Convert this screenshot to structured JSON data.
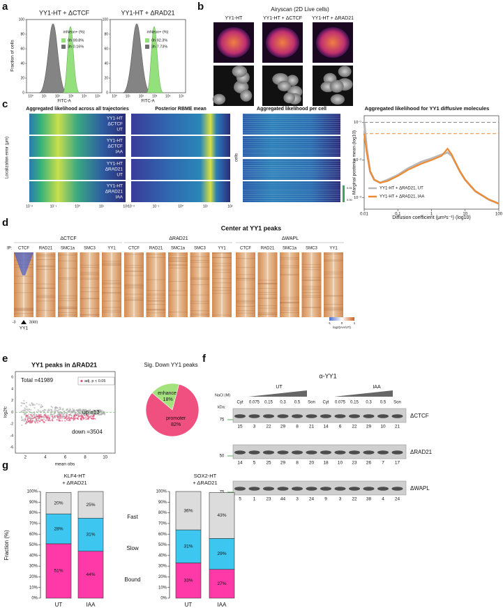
{
  "panel_labels": [
    "a",
    "b",
    "c",
    "d",
    "e",
    "f",
    "g"
  ],
  "a": {
    "titles": [
      "YY1-HT + ΔCTCF",
      "YY1-HT + ΔRAD21"
    ],
    "ylabel": "Fraction of cells",
    "xlabel": "FITC-A",
    "legend_title": "mNeon+ (%)",
    "legends": [
      [
        "0h  99.8%",
        "3h  0.16%"
      ],
      [
        "0h  92.3%",
        "3h  7.73%"
      ]
    ],
    "yticks": [
      "0",
      "20",
      "40",
      "60",
      "80",
      "100"
    ],
    "xticks": [
      "10⁰",
      "10¹",
      "10²",
      "10³",
      "10⁴",
      "10⁵"
    ]
  },
  "b": {
    "title": "Airyscan (2D Live cells)",
    "columns": [
      "YY1-HT",
      "YY1-HT + ΔCTCF",
      "YY1-HT + ΔRAD21"
    ]
  },
  "c": {
    "titles": [
      "Aggregated likelihood across all trajectories",
      "Posterior RBME mean",
      "Aggregated likelihood per cell"
    ],
    "row_labels": [
      [
        "YY1-HT",
        "ΔCTCF",
        "UT"
      ],
      [
        "YY1-HT",
        "ΔCTCF",
        "IAA"
      ],
      [
        "YY1-HT",
        "ΔRAD21",
        "UT"
      ],
      [
        "YY1-HT",
        "ΔRAD21",
        "IAA"
      ]
    ],
    "ylabel": "Localization error (μm)",
    "cells_label": "cells",
    "xticks": [
      "10⁻²",
      "10⁻¹",
      "10⁰",
      "10¹",
      "10²"
    ],
    "colorbar": [
      "0.01",
      "0.00"
    ]
  },
  "d": {
    "title": "Center at YY1 peaks",
    "groups": [
      "ΔCTCF",
      "ΔRAD21",
      "ΔWAPL"
    ],
    "ip": "IP:",
    "targets": [
      "CTCF",
      "RAD21",
      "SMC1a",
      "SMC3",
      "YY1"
    ],
    "axis": [
      "-3",
      "3(kb)"
    ],
    "anchor": "YY1",
    "colorbar_title": "log2(IAA/UT)",
    "colorbar_ticks": [
      "-1",
      "0",
      "1"
    ]
  },
  "e": {
    "title": "YY1 peaks in ΔRAD21",
    "total": "Total =41989",
    "legend": "adj. p < 0.05",
    "up": "up =13",
    "down": "down =3504",
    "ylabel": "log2fc",
    "xlabel": "mean obs",
    "xticks": [
      "2",
      "4",
      "6",
      "8",
      "10"
    ],
    "yticks": [
      "6",
      "4",
      "2",
      "0",
      "-2",
      "-4",
      "-6"
    ]
  },
  "f": {
    "title": "α-YY1",
    "conditions": [
      "UT",
      "IAA"
    ],
    "salt_label": "NaCl (M)",
    "lanes": [
      "Cyt",
      "0.075",
      "0.15",
      "0.3",
      "0.5",
      "Son",
      "Cyt",
      "0.075",
      "0.15",
      "0.3",
      "0.5",
      "Son"
    ],
    "kda": "kDa:",
    "blots": [
      {
        "label": "ΔCTCF",
        "marker": "75",
        "quant": [
          15,
          3,
          22,
          29,
          8,
          21,
          14,
          6,
          22,
          29,
          10,
          21
        ]
      },
      {
        "label": "ΔRAD21",
        "marker": "50",
        "quant": [
          14,
          5,
          25,
          29,
          8,
          20,
          18,
          10,
          23,
          26,
          7,
          17
        ]
      },
      {
        "label": "ΔWAPL",
        "marker": "75",
        "quant": [
          5,
          1,
          23,
          44,
          3,
          24,
          9,
          3,
          22,
          38,
          4,
          24
        ]
      }
    ]
  },
  "g": {
    "ylabel": "Fraction (%)"
  },
  "chart_data": [
    {
      "type": "line",
      "title": "Aggregated likelihood for YY1 diffusive molecules",
      "xlabel": "Diffusion coefficient (μm²s⁻¹) (log10)",
      "ylabel": "Marginal posterior mean (log10)",
      "x": [
        0.01,
        0.012,
        0.015,
        0.02,
        0.03,
        0.05,
        0.1,
        0.2,
        0.5,
        1,
        2,
        3,
        4,
        5,
        7,
        10,
        20,
        50,
        100
      ],
      "series": [
        {
          "name": "YY1-HT + ΔRAD21, UT",
          "color": "#b8b8b8",
          "values": [
            0.1,
            0.02,
            0.005,
            0.003,
            0.0025,
            0.003,
            0.004,
            0.006,
            0.009,
            0.011,
            0.014,
            0.016,
            0.013,
            0.009,
            0.005,
            0.003,
            0.0015,
            0.0009,
            0.0007
          ]
        },
        {
          "name": "YY1-HT + ΔRAD21, IAA",
          "color": "#f08a30",
          "values": [
            0.05,
            0.015,
            0.005,
            0.003,
            0.0025,
            0.0028,
            0.0038,
            0.0055,
            0.008,
            0.01,
            0.013,
            0.02,
            0.014,
            0.009,
            0.005,
            0.003,
            0.0015,
            0.0009,
            0.0007
          ]
        }
      ],
      "hlines": [
        {
          "value": 0.1,
          "color": "#888888"
        },
        {
          "value": 0.05,
          "color": "#f08a30"
        }
      ],
      "xscale": "log",
      "yscale": "log",
      "xlim": [
        0.01,
        100
      ],
      "ylim": [
        0.0005,
        0.15
      ],
      "xticks": [
        0.01,
        0.1,
        1,
        10,
        100
      ],
      "yticks": [
        {
          "value": 0.1,
          "label": "10⁻¹"
        },
        {
          "value": 0.01,
          "label": "10⁻²"
        },
        {
          "value": 0.001,
          "label": "10⁻³"
        }
      ],
      "legend": "lower left"
    },
    {
      "type": "pie",
      "title": "Sig. Down YY1 peaks",
      "categories": [
        "enhancer",
        "promoter"
      ],
      "values": [
        18,
        82
      ],
      "value_labels": [
        "18%",
        "82%"
      ],
      "colors": [
        "#a3e27c",
        "#f0507f"
      ]
    },
    {
      "type": "stacked-bar",
      "title": [
        "KLF4-HT",
        "+ ΔRAD21"
      ],
      "categories": [
        "UT",
        "IAA"
      ],
      "series": [
        {
          "name": "Bound",
          "color": "#ff3aa8",
          "text_color": "#e8208f",
          "values": [
            51,
            44
          ],
          "value_labels": [
            "51%",
            "44%"
          ]
        },
        {
          "name": "Slow",
          "color": "#3cc6f0",
          "text_color": "#2aa0d8",
          "values": [
            28,
            31
          ],
          "value_labels": [
            "28%",
            "31%"
          ]
        },
        {
          "name": "Fast",
          "color": "#dcdcdc",
          "text_color": "#5e8c8c",
          "values": [
            20,
            25
          ],
          "value_labels": [
            "20%",
            "25%"
          ]
        }
      ],
      "ylim": [
        0,
        100
      ],
      "yticks": [
        {
          "value": 0,
          "label": "0%"
        },
        {
          "value": 10,
          "label": "10%"
        },
        {
          "value": 20,
          "label": "20%"
        },
        {
          "value": 30,
          "label": "30%"
        },
        {
          "value": 40,
          "label": "40%"
        },
        {
          "value": 50,
          "label": "50%"
        },
        {
          "value": 60,
          "label": "60%"
        },
        {
          "value": 70,
          "label": "70%"
        },
        {
          "value": 80,
          "label": "80%"
        },
        {
          "value": 90,
          "label": "90%"
        },
        {
          "value": 100,
          "label": "100%"
        }
      ]
    },
    {
      "type": "stacked-bar",
      "title": [
        "SOX2-HT",
        "+ ΔRAD21"
      ],
      "categories": [
        "UT",
        "IAA"
      ],
      "series": [
        {
          "name": "Bound",
          "color": "#ff3aa8",
          "values": [
            33,
            27
          ],
          "value_labels": [
            "33%",
            "27%"
          ]
        },
        {
          "name": "Slow",
          "color": "#3cc6f0",
          "values": [
            31,
            29
          ],
          "value_labels": [
            "31%",
            "29%"
          ]
        },
        {
          "name": "Fast",
          "color": "#dcdcdc",
          "values": [
            36,
            43
          ],
          "value_labels": [
            "36%",
            "43%"
          ]
        }
      ],
      "ylim": [
        0,
        100
      ],
      "yticks": [
        {
          "value": 0,
          "label": "0%"
        },
        {
          "value": 10,
          "label": "10%"
        },
        {
          "value": 20,
          "label": "20%"
        },
        {
          "value": 30,
          "label": "30%"
        },
        {
          "value": 40,
          "label": "40%"
        },
        {
          "value": 50,
          "label": "50%"
        },
        {
          "value": 60,
          "label": "60%"
        },
        {
          "value": 70,
          "label": "70%"
        },
        {
          "value": 80,
          "label": "80%"
        },
        {
          "value": 90,
          "label": "90%"
        },
        {
          "value": 100,
          "label": "100%"
        }
      ]
    }
  ]
}
